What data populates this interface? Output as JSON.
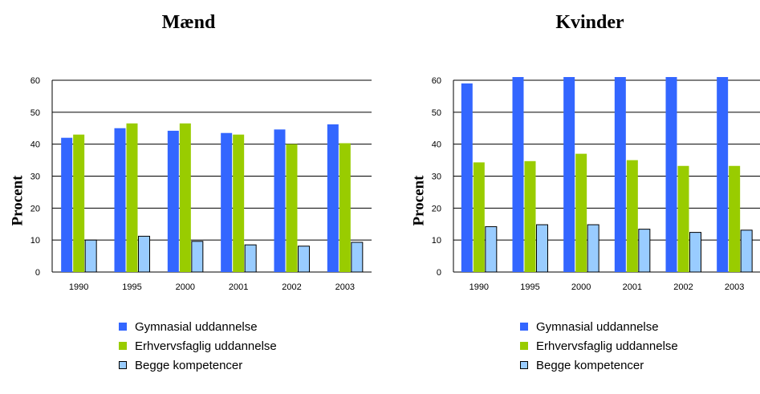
{
  "legend": [
    "Gymnasial uddannelse",
    "Erhvervsfaglig uddannelse",
    "Begge kompetencer"
  ],
  "colors": {
    "gymnasial": "#3366ff",
    "erhvervsfaglig": "#99cc00",
    "begge": "#99ccff",
    "axis": "#000000"
  },
  "chart_data": [
    {
      "type": "bar",
      "title": "Mænd",
      "ylabel": "Procent",
      "xlabel": "",
      "categories": [
        "1990",
        "1995",
        "2000",
        "2001",
        "2002",
        "2003"
      ],
      "ylim": [
        0,
        60
      ],
      "yticks": [
        0,
        10,
        20,
        30,
        40,
        50,
        60
      ],
      "grid": true,
      "legend_position": "bottom",
      "series": [
        {
          "name": "Gymnasial uddannelse",
          "values": [
            42,
            45,
            44.2,
            43.5,
            44.6,
            46.2
          ]
        },
        {
          "name": "Erhvervsfaglig uddannelse",
          "values": [
            43,
            46.5,
            46.5,
            43,
            40,
            40.3
          ]
        },
        {
          "name": "Begge kompetencer",
          "values": [
            10,
            11.2,
            9.6,
            8.5,
            8.1,
            9.3
          ]
        }
      ]
    },
    {
      "type": "bar",
      "title": "Kvinder",
      "ylabel": "Procent",
      "xlabel": "",
      "categories": [
        "1990",
        "1995",
        "2000",
        "2001",
        "2002",
        "2003"
      ],
      "ylim": [
        0,
        60
      ],
      "yticks": [
        0,
        10,
        20,
        30,
        40,
        50,
        60
      ],
      "grid": true,
      "legend_position": "bottom",
      "series": [
        {
          "name": "Gymnasial uddannelse",
          "values": [
            59,
            61,
            61,
            61,
            61,
            61
          ]
        },
        {
          "name": "Erhvervsfaglig uddannelse",
          "values": [
            34.3,
            34.7,
            37,
            35,
            33.2,
            33.2
          ]
        },
        {
          "name": "Begge kompetencer",
          "values": [
            14.2,
            14.8,
            14.8,
            13.4,
            12.4,
            13.1
          ]
        }
      ]
    }
  ]
}
